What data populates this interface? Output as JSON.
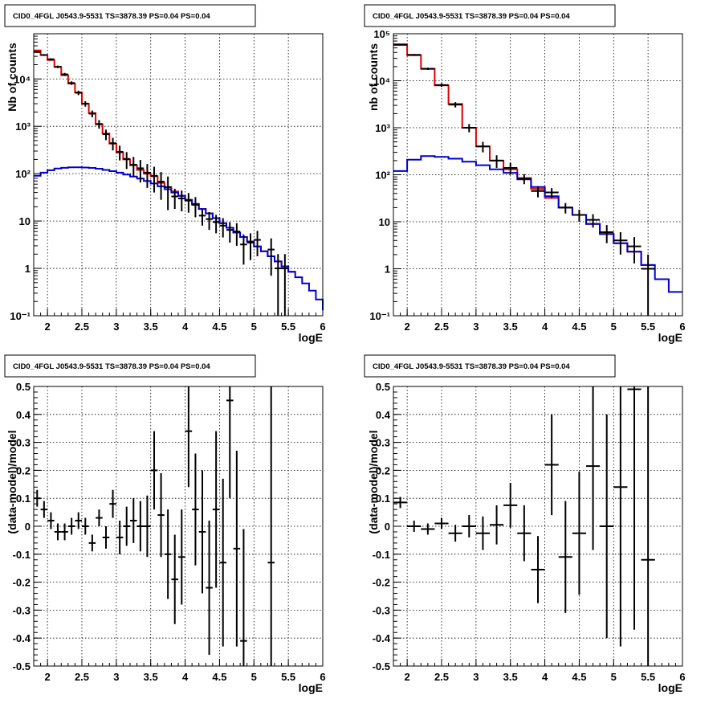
{
  "chart_data": [
    {
      "type": "line",
      "panel": "top-left",
      "title": "CID0_4FGL J0543.9-5531 TS=3878.39 PS=0.04 PS=0.04",
      "xlabel": "logE",
      "ylabel": "Nb of counts",
      "xlim": [
        1.8,
        6.0
      ],
      "ylim": [
        0.1,
        90000
      ],
      "yscale": "log",
      "grid": true,
      "x_ticks": [
        "2",
        "2.5",
        "3",
        "3.5",
        "4",
        "4.5",
        "5",
        "5.5",
        "6"
      ],
      "y_ticks": [
        "10⁻¹",
        "1",
        "10",
        "10²",
        "10³",
        "10⁴"
      ],
      "bin_edges": [
        1.8,
        1.9,
        2.0,
        2.1,
        2.2,
        2.3,
        2.4,
        2.5,
        2.6,
        2.7,
        2.8,
        2.9,
        3.0,
        3.1,
        3.2,
        3.3,
        3.4,
        3.5,
        3.6,
        3.7,
        3.8,
        3.9,
        4.0,
        4.1,
        4.2,
        4.3,
        4.4,
        4.5,
        4.6,
        4.7,
        4.8,
        4.9,
        5.0,
        5.1,
        5.2,
        5.3,
        5.4,
        5.5,
        5.6,
        5.7,
        5.8,
        5.9,
        6.0
      ],
      "series": [
        {
          "color": "#e00000",
          "values": [
            40000,
            32000,
            25000,
            18000,
            12000,
            8000,
            5200,
            3000,
            1900,
            1100,
            700,
            430,
            280,
            200,
            150,
            120,
            100,
            88,
            64,
            52,
            42,
            34,
            28,
            22,
            18,
            14.5,
            11.5,
            9.0,
            7.2,
            5.7,
            4.6,
            3.7,
            2.9,
            2.3,
            1.8,
            1.4,
            1.1,
            0.85
          ]
        },
        {
          "color": "#0000cc",
          "values": [
            90,
            105,
            118,
            128,
            133,
            136,
            136,
            135,
            132,
            127,
            120,
            113,
            105,
            96,
            87,
            79,
            70,
            62,
            54,
            47,
            40,
            34,
            28,
            23,
            18,
            14.5,
            11.5,
            9.0,
            7.2,
            5.7,
            4.6,
            3.7,
            2.9,
            2.3,
            1.8,
            1.4,
            1.1,
            0.85,
            0.65,
            0.48,
            0.34,
            0.22,
            0.13
          ]
        }
      ],
      "points": [
        {
          "x": 1.85,
          "y": 37000,
          "err": 1500
        },
        {
          "x": 1.95,
          "y": 32000,
          "err": 1400
        },
        {
          "x": 2.05,
          "y": 26000,
          "err": 1300
        },
        {
          "x": 2.15,
          "y": 18000,
          "err": 1100
        },
        {
          "x": 2.25,
          "y": 12500,
          "err": 900
        },
        {
          "x": 2.35,
          "y": 8200,
          "err": 700
        },
        {
          "x": 2.45,
          "y": 5100,
          "err": 550
        },
        {
          "x": 2.55,
          "y": 3000,
          "err": 400
        },
        {
          "x": 2.65,
          "y": 1850,
          "err": 300
        },
        {
          "x": 2.75,
          "y": 1120,
          "err": 230
        },
        {
          "x": 2.85,
          "y": 680,
          "err": 170
        },
        {
          "x": 2.95,
          "y": 440,
          "err": 130
        },
        {
          "x": 3.05,
          "y": 290,
          "err": 100
        },
        {
          "x": 3.15,
          "y": 205,
          "err": 80
        },
        {
          "x": 3.25,
          "y": 155,
          "err": 70
        },
        {
          "x": 3.35,
          "y": 130,
          "err": 65
        },
        {
          "x": 3.45,
          "y": 105,
          "err": 55
        },
        {
          "x": 3.55,
          "y": 90,
          "err": 50
        },
        {
          "x": 3.65,
          "y": 68,
          "err": 40
        },
        {
          "x": 3.75,
          "y": 52,
          "err": 35
        },
        {
          "x": 3.85,
          "y": 33,
          "err": 15
        },
        {
          "x": 3.95,
          "y": 30,
          "err": 14
        },
        {
          "x": 4.05,
          "y": 27,
          "err": 12
        },
        {
          "x": 4.15,
          "y": 22,
          "err": 10
        },
        {
          "x": 4.25,
          "y": 13,
          "err": 5
        },
        {
          "x": 4.35,
          "y": 11,
          "err": 4.5
        },
        {
          "x": 4.45,
          "y": 9.5,
          "err": 4
        },
        {
          "x": 4.55,
          "y": 8,
          "err": 3.5
        },
        {
          "x": 4.65,
          "y": 6.5,
          "err": 3
        },
        {
          "x": 4.75,
          "y": 6,
          "err": 3
        },
        {
          "x": 4.85,
          "y": 3.2,
          "err": 2
        },
        {
          "x": 4.95,
          "y": 3.5,
          "err": 2
        },
        {
          "x": 5.05,
          "y": 4,
          "err": 2.2
        },
        {
          "x": 5.25,
          "y": 2.5,
          "err": 1.8
        },
        {
          "x": 5.35,
          "y": 1,
          "err": 1
        },
        {
          "x": 5.45,
          "y": 1,
          "err": 1
        }
      ]
    },
    {
      "type": "line",
      "panel": "top-right",
      "title": "CID0_4FGL J0543.9-5531 TS=3878.39 PS=0.04 PS=0.04",
      "xlabel": "logE",
      "ylabel": "nb of counts",
      "xlim": [
        1.8,
        6.0
      ],
      "ylim": [
        0.1,
        100000
      ],
      "yscale": "log",
      "grid": true,
      "x_ticks": [
        "2",
        "2.5",
        "3",
        "3.5",
        "4",
        "4.5",
        "5",
        "5.5",
        "6"
      ],
      "y_ticks": [
        "10⁻¹",
        "1",
        "10",
        "10²",
        "10³",
        "10⁴",
        "10⁵"
      ],
      "bin_edges": [
        1.8,
        2.0,
        2.2,
        2.4,
        2.6,
        2.8,
        3.0,
        3.2,
        3.4,
        3.6,
        3.8,
        4.0,
        4.2,
        4.4,
        4.6,
        4.8,
        5.0,
        5.2,
        5.4,
        5.6,
        5.8,
        6.0
      ],
      "series": [
        {
          "color": "#e00000",
          "values": [
            60000,
            35000,
            18000,
            8000,
            3200,
            1000,
            400,
            200,
            130,
            85,
            50,
            32,
            20,
            14,
            9,
            5.5,
            3.5,
            2.3,
            1.2
          ]
        },
        {
          "color": "#0000cc",
          "values": [
            120,
            210,
            250,
            240,
            220,
            190,
            160,
            130,
            110,
            80,
            55,
            35,
            20,
            14,
            9,
            5.5,
            3.5,
            2.3,
            1.2,
            0.6,
            0.32
          ]
        }
      ],
      "points": [
        {
          "x": 1.9,
          "y": 58000,
          "err": 2000
        },
        {
          "x": 2.1,
          "y": 35500,
          "err": 1500
        },
        {
          "x": 2.3,
          "y": 18000,
          "err": 1000
        },
        {
          "x": 2.5,
          "y": 8100,
          "err": 700
        },
        {
          "x": 2.7,
          "y": 3100,
          "err": 400
        },
        {
          "x": 2.9,
          "y": 1000,
          "err": 200
        },
        {
          "x": 3.1,
          "y": 400,
          "err": 100
        },
        {
          "x": 3.3,
          "y": 200,
          "err": 60
        },
        {
          "x": 3.5,
          "y": 140,
          "err": 40
        },
        {
          "x": 3.7,
          "y": 83,
          "err": 20
        },
        {
          "x": 3.9,
          "y": 45,
          "err": 12
        },
        {
          "x": 4.1,
          "y": 42,
          "err": 10
        },
        {
          "x": 4.3,
          "y": 20,
          "err": 5
        },
        {
          "x": 4.5,
          "y": 14,
          "err": 4
        },
        {
          "x": 4.7,
          "y": 11,
          "err": 3.5
        },
        {
          "x": 4.9,
          "y": 6,
          "err": 2.5
        },
        {
          "x": 5.1,
          "y": 4,
          "err": 2
        },
        {
          "x": 5.3,
          "y": 3,
          "err": 1.7
        },
        {
          "x": 5.5,
          "y": 1,
          "err": 1
        }
      ]
    },
    {
      "type": "scatter",
      "panel": "bottom-left",
      "title": "CID0_4FGL J0543.9-5531 TS=3878.39 PS=0.04 PS=0.04",
      "xlabel": "logE",
      "ylabel": "(data-model)/model",
      "xlim": [
        1.8,
        6.0
      ],
      "ylim": [
        -0.5,
        0.5
      ],
      "grid": true,
      "x_ticks": [
        "2",
        "2.5",
        "3",
        "3.5",
        "4",
        "4.5",
        "5",
        "5.5",
        "6"
      ],
      "y_ticks": [
        "-0.5",
        "-0.4",
        "-0.3",
        "-0.2",
        "-0.1",
        "0",
        "0.1",
        "0.2",
        "0.3",
        "0.4",
        "0.5"
      ],
      "bin_width": 0.1,
      "points": [
        {
          "x": 1.85,
          "y": 0.1,
          "err": 0.03
        },
        {
          "x": 1.95,
          "y": 0.06,
          "err": 0.03
        },
        {
          "x": 2.05,
          "y": 0.02,
          "err": 0.03
        },
        {
          "x": 2.15,
          "y": -0.02,
          "err": 0.03
        },
        {
          "x": 2.25,
          "y": -0.02,
          "err": 0.03
        },
        {
          "x": 2.35,
          "y": 0.0,
          "err": 0.03
        },
        {
          "x": 2.45,
          "y": 0.02,
          "err": 0.03
        },
        {
          "x": 2.55,
          "y": 0.0,
          "err": 0.03
        },
        {
          "x": 2.65,
          "y": -0.06,
          "err": 0.03
        },
        {
          "x": 2.75,
          "y": 0.03,
          "err": 0.03
        },
        {
          "x": 2.85,
          "y": -0.04,
          "err": 0.04
        },
        {
          "x": 2.95,
          "y": 0.08,
          "err": 0.05
        },
        {
          "x": 3.05,
          "y": -0.04,
          "err": 0.06
        },
        {
          "x": 3.15,
          "y": 0.0,
          "err": 0.07
        },
        {
          "x": 3.25,
          "y": 0.02,
          "err": 0.08
        },
        {
          "x": 3.35,
          "y": 0.0,
          "err": 0.09
        },
        {
          "x": 3.45,
          "y": 0.0,
          "err": 0.11
        },
        {
          "x": 3.55,
          "y": 0.2,
          "err": 0.14
        },
        {
          "x": 3.65,
          "y": 0.04,
          "err": 0.15
        },
        {
          "x": 3.75,
          "y": -0.1,
          "err": 0.16
        },
        {
          "x": 3.85,
          "y": -0.19,
          "err": 0.16
        },
        {
          "x": 3.95,
          "y": -0.11,
          "err": 0.17
        },
        {
          "x": 4.05,
          "y": 0.34,
          "err": 0.2
        },
        {
          "x": 4.15,
          "y": 0.06,
          "err": 0.2
        },
        {
          "x": 4.25,
          "y": -0.02,
          "err": 0.22
        },
        {
          "x": 4.35,
          "y": -0.22,
          "err": 0.24
        },
        {
          "x": 4.45,
          "y": 0.06,
          "err": 0.28
        },
        {
          "x": 4.55,
          "y": -0.13,
          "err": 0.3
        },
        {
          "x": 4.65,
          "y": 0.45,
          "err": 0.35
        },
        {
          "x": 4.75,
          "y": -0.08,
          "err": 0.35
        },
        {
          "x": 4.85,
          "y": -0.41,
          "err": 0.4
        },
        {
          "x": 5.25,
          "y": -0.13,
          "err": 0.7
        }
      ]
    },
    {
      "type": "scatter",
      "panel": "bottom-right",
      "title": "CID0_4FGL J0543.9-5531 TS=3878.39 PS=0.04 PS=0.04",
      "xlabel": "logE",
      "ylabel": "(data-model)/model",
      "xlim": [
        1.8,
        6.0
      ],
      "ylim": [
        -0.5,
        0.5
      ],
      "grid": true,
      "x_ticks": [
        "2",
        "2.5",
        "3",
        "3.5",
        "4",
        "4.5",
        "5",
        "5.5",
        "6"
      ],
      "y_ticks": [
        "-0.5",
        "-0.4",
        "-0.3",
        "-0.2",
        "-0.1",
        "0",
        "0.1",
        "0.2",
        "0.3",
        "0.4",
        "0.5"
      ],
      "bin_width": 0.2,
      "points": [
        {
          "x": 1.9,
          "y": 0.085,
          "err": 0.02
        },
        {
          "x": 2.1,
          "y": 0.0,
          "err": 0.02
        },
        {
          "x": 2.3,
          "y": -0.01,
          "err": 0.02
        },
        {
          "x": 2.5,
          "y": 0.01,
          "err": 0.02
        },
        {
          "x": 2.7,
          "y": -0.025,
          "err": 0.03
        },
        {
          "x": 2.9,
          "y": 0.0,
          "err": 0.04
        },
        {
          "x": 3.1,
          "y": -0.025,
          "err": 0.06
        },
        {
          "x": 3.3,
          "y": 0.005,
          "err": 0.07
        },
        {
          "x": 3.5,
          "y": 0.075,
          "err": 0.08
        },
        {
          "x": 3.7,
          "y": -0.025,
          "err": 0.1
        },
        {
          "x": 3.9,
          "y": -0.155,
          "err": 0.12
        },
        {
          "x": 4.1,
          "y": 0.22,
          "err": 0.18
        },
        {
          "x": 4.3,
          "y": -0.11,
          "err": 0.2
        },
        {
          "x": 4.5,
          "y": -0.025,
          "err": 0.22
        },
        {
          "x": 4.7,
          "y": 0.215,
          "err": 0.3
        },
        {
          "x": 4.9,
          "y": 0.0,
          "err": 0.4
        },
        {
          "x": 5.1,
          "y": 0.14,
          "err": 0.57
        },
        {
          "x": 5.3,
          "y": 0.49,
          "err": 0.86
        },
        {
          "x": 5.5,
          "y": -0.12,
          "err": 1.0
        }
      ]
    }
  ]
}
